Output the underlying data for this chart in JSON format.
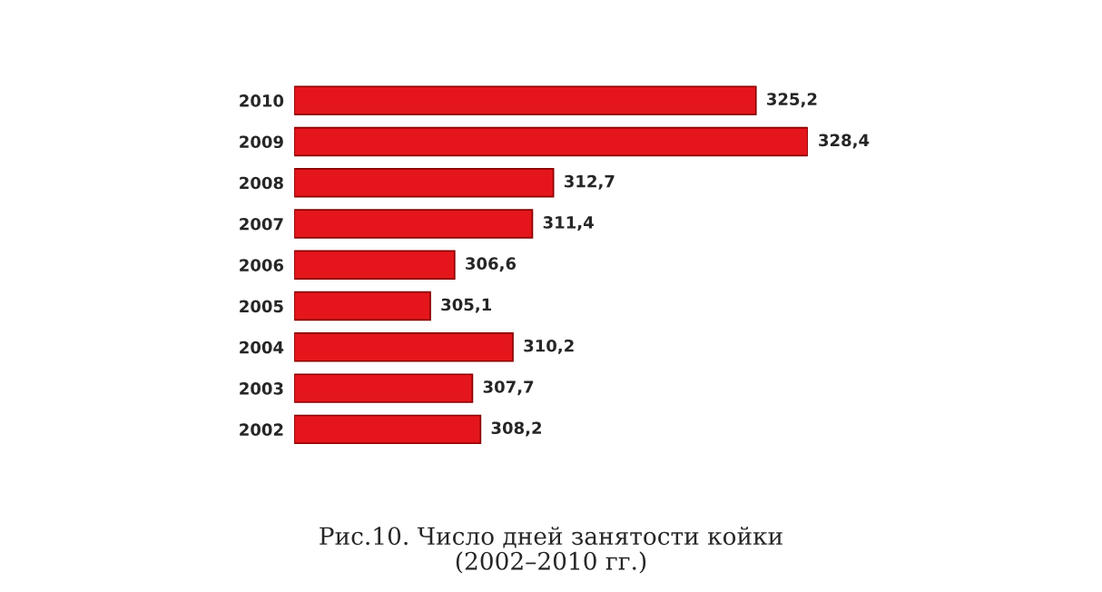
{
  "chart_data": {
    "type": "bar",
    "orientation": "horizontal",
    "title": "Рис.10. Число дней занятости койки\n(2002–2010 гг.)",
    "categories": [
      "2010",
      "2009",
      "2008",
      "2007",
      "2006",
      "2005",
      "2004",
      "2003",
      "2002"
    ],
    "values": [
      325.2,
      328.4,
      312.7,
      311.4,
      306.6,
      305.1,
      310.2,
      307.7,
      308.2
    ],
    "value_labels": [
      "325,2",
      "328,4",
      "312,7",
      "311,4",
      "306,6",
      "305,1",
      "310,2",
      "307,7",
      "308,2"
    ],
    "color": "#e4161c",
    "xlim": [
      296.7,
      328.4
    ],
    "tick_labels": "y",
    "grid": false
  }
}
